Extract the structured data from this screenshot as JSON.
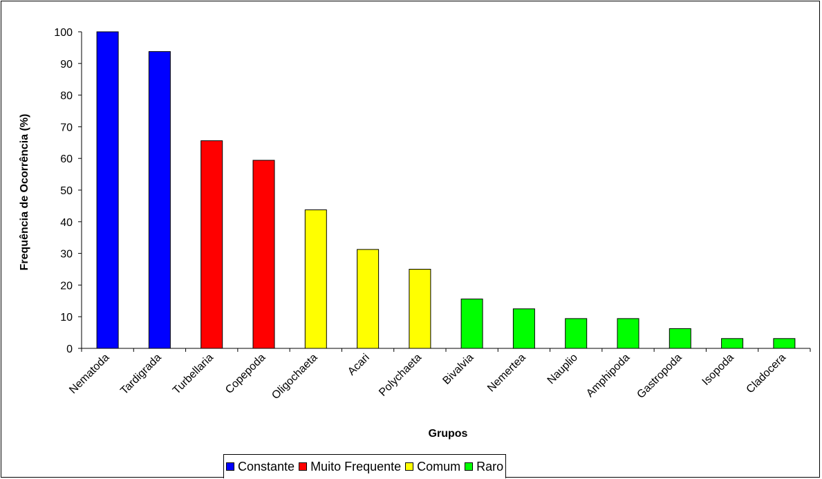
{
  "chart_data": {
    "type": "bar",
    "xlabel": "Grupos",
    "ylabel": "Frequência de Ocorrência (%)",
    "ylim": [
      0,
      100
    ],
    "yticks": [
      0,
      10,
      20,
      30,
      40,
      50,
      60,
      70,
      80,
      90,
      100
    ],
    "grid": false,
    "legend_position": "bottom",
    "categories": [
      "Nematoda",
      "Tardigrada",
      "Turbellaria",
      "Copepoda",
      "Oligochaeta",
      "Acari",
      "Polychaeta",
      "Bivalvia",
      "Nemertea",
      "Nauplio",
      "Amphipoda",
      "Gastropoda",
      "Isopoda",
      "Cladocera"
    ],
    "values": [
      100,
      93.75,
      65.6,
      59.4,
      43.75,
      31.25,
      25,
      15.6,
      12.5,
      9.4,
      9.4,
      6.25,
      3.1,
      3.1
    ],
    "bar_class": [
      "Constante",
      "Constante",
      "Muito Frequente",
      "Muito Frequente",
      "Comum",
      "Comum",
      "Comum",
      "Raro",
      "Raro",
      "Raro",
      "Raro",
      "Raro",
      "Raro",
      "Raro"
    ],
    "legend": [
      {
        "label": "Constante",
        "color": "#0000ff"
      },
      {
        "label": "Muito Frequente",
        "color": "#ff0000"
      },
      {
        "label": "Comum",
        "color": "#ffff00"
      },
      {
        "label": "Raro",
        "color": "#00ff00"
      }
    ]
  }
}
